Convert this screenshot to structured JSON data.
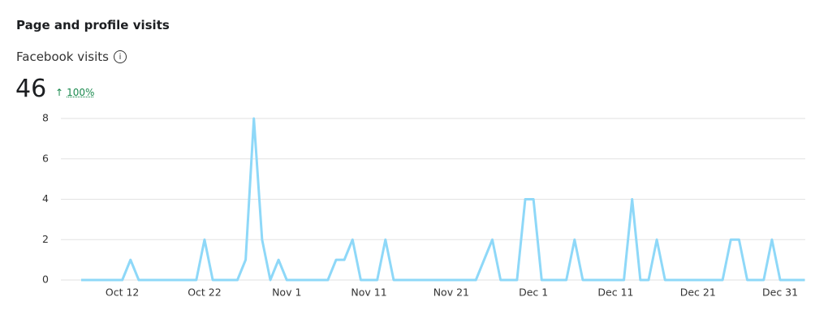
{
  "header": {
    "title": "Page and profile visits",
    "metric": "Facebook visits",
    "total": 46,
    "change": "100%"
  },
  "chart_data": {
    "type": "line",
    "categories": [
      null,
      null,
      null,
      null,
      null,
      "Oct 12",
      null,
      null,
      null,
      null,
      null,
      null,
      null,
      null,
      null,
      "Oct 22",
      null,
      null,
      null,
      null,
      null,
      null,
      null,
      null,
      null,
      "Nov 1",
      null,
      null,
      null,
      null,
      null,
      null,
      null,
      null,
      null,
      "Nov 11",
      null,
      null,
      null,
      null,
      null,
      null,
      null,
      null,
      null,
      "Nov 21",
      null,
      null,
      null,
      null,
      null,
      null,
      null,
      null,
      null,
      "Dec 1",
      null,
      null,
      null,
      null,
      null,
      null,
      null,
      null,
      null,
      "Dec 11",
      null,
      null,
      null,
      null,
      null,
      null,
      null,
      null,
      null,
      "Dec 21",
      null,
      null,
      null,
      null,
      null,
      null,
      null,
      null,
      null,
      "Dec 31",
      null,
      null,
      null
    ],
    "series": [
      {
        "name": "Facebook visits",
        "color": "#8ed8f8",
        "values": [
          0,
          0,
          0,
          0,
          0,
          0,
          1,
          0,
          0,
          0,
          0,
          0,
          0,
          0,
          0,
          2,
          0,
          0,
          0,
          0,
          1,
          8,
          2,
          0,
          1,
          0,
          0,
          0,
          0,
          0,
          0,
          1,
          1,
          2,
          0,
          0,
          0,
          2,
          0,
          0,
          0,
          0,
          0,
          0,
          0,
          0,
          0,
          0,
          0,
          1,
          2,
          0,
          0,
          0,
          4,
          4,
          0,
          0,
          0,
          0,
          2,
          0,
          0,
          0,
          0,
          0,
          0,
          4,
          0,
          0,
          2,
          0,
          0,
          0,
          0,
          0,
          0,
          0,
          0,
          2,
          2,
          0,
          0,
          0,
          2,
          0,
          0,
          0,
          0
        ]
      }
    ],
    "ylim": [
      0,
      8
    ],
    "yticks": [
      0,
      2,
      4,
      6,
      8
    ],
    "grid": true
  }
}
